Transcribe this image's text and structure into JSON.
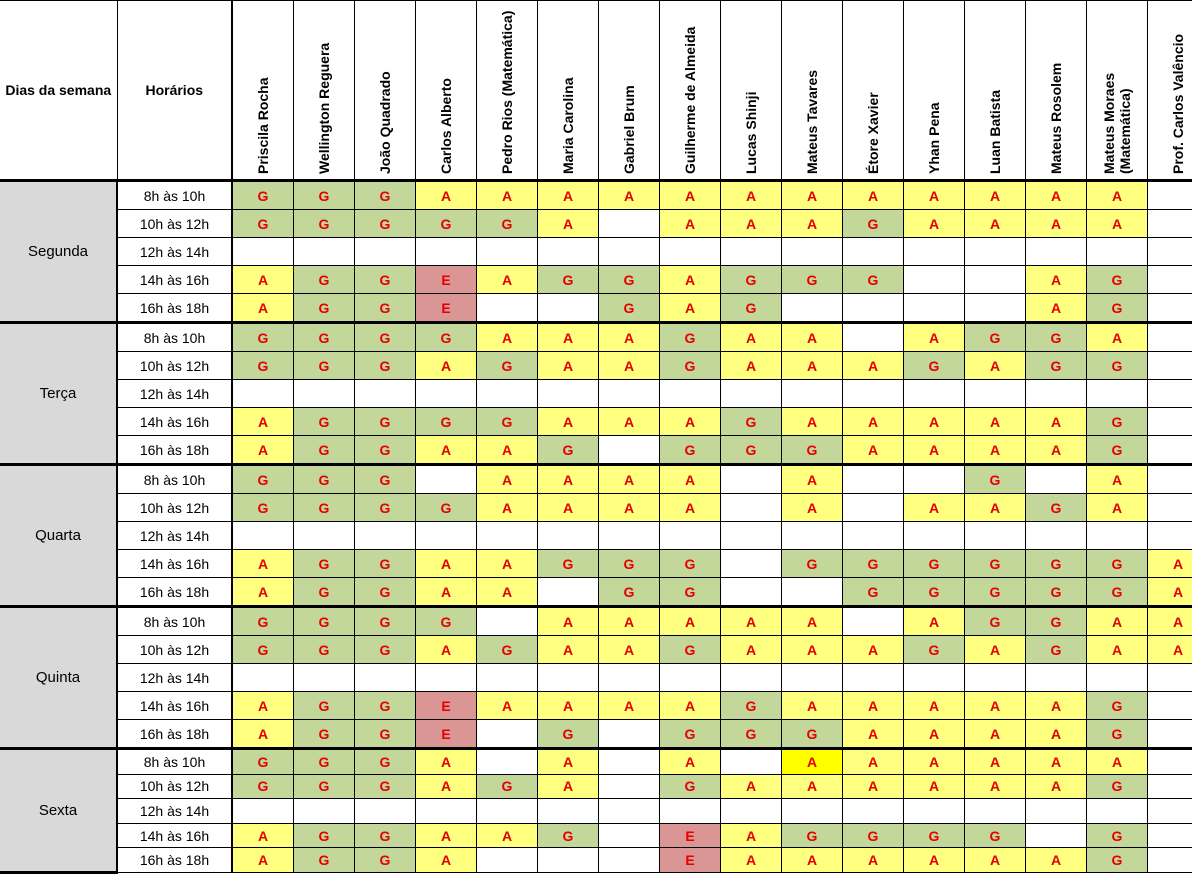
{
  "header": {
    "days_label": "Dias da semana",
    "times_label": "Horários",
    "people": [
      "Priscila Rocha",
      "Wellington Reguera",
      "João Quadrado",
      "Carlos Alberto",
      "Pedro Rios (Matemática)",
      "Maria Carolina",
      "Gabriel Brum",
      "Guilherme de Almeida",
      "Lucas Shinji",
      "Mateus Tavares",
      "Étore Xavier",
      "Yhan Pena",
      "Luan Batista",
      "Mateus Rosolem",
      "Mateus Moraes (Matemática)",
      "Prof. Carlos Valêncio"
    ]
  },
  "colors": {
    "G": "#c4d79b",
    "A": "#ffff80",
    "E": "#da9694",
    "highlight": "#ffff00",
    "text": "#e60000",
    "day_bg": "#d9d9d9"
  },
  "days": [
    {
      "name": "Segunda",
      "slots": [
        {
          "time": "8h às 10h",
          "cells": [
            "G",
            "G",
            "G",
            "A",
            "A",
            "A",
            "A",
            "A",
            "A",
            "A",
            "A",
            "A",
            "A",
            "A",
            "A",
            ""
          ]
        },
        {
          "time": "10h às 12h",
          "cells": [
            "G",
            "G",
            "G",
            "G",
            "G",
            "A",
            "",
            "A",
            "A",
            "A",
            "G",
            "A",
            "A",
            "A",
            "A",
            ""
          ]
        },
        {
          "time": "12h às 14h",
          "cells": [
            "",
            "",
            "",
            "",
            "",
            "",
            "",
            "",
            "",
            "",
            "",
            "",
            "",
            "",
            "",
            ""
          ]
        },
        {
          "time": "14h às 16h",
          "cells": [
            "A",
            "G",
            "G",
            "E",
            "A",
            "G",
            "G",
            "A",
            "G",
            "G",
            "G",
            "",
            "",
            "A",
            "G",
            ""
          ]
        },
        {
          "time": "16h às 18h",
          "cells": [
            "A",
            "G",
            "G",
            "E",
            "",
            "",
            "G",
            "A",
            "G",
            "",
            "",
            "",
            "",
            "A",
            "G",
            ""
          ]
        }
      ]
    },
    {
      "name": "Terça",
      "slots": [
        {
          "time": "8h às 10h",
          "cells": [
            "G",
            "G",
            "G",
            "G",
            "A",
            "A",
            "A",
            "G",
            "A",
            "A",
            "",
            "A",
            "G",
            "G",
            "A",
            ""
          ]
        },
        {
          "time": "10h às 12h",
          "cells": [
            "G",
            "G",
            "G",
            "A",
            "G",
            "A",
            "A",
            "G",
            "A",
            "A",
            "A",
            "G",
            "A",
            "G",
            "G",
            ""
          ]
        },
        {
          "time": "12h às 14h",
          "cells": [
            "",
            "",
            "",
            "",
            "",
            "",
            "",
            "",
            "",
            "",
            "",
            "",
            "",
            "",
            "",
            ""
          ]
        },
        {
          "time": "14h às 16h",
          "cells": [
            "A",
            "G",
            "G",
            "G",
            "G",
            "A",
            "A",
            "A",
            "G",
            "A",
            "A",
            "A",
            "A",
            "A",
            "G",
            ""
          ]
        },
        {
          "time": "16h às 18h",
          "cells": [
            "A",
            "G",
            "G",
            "A",
            "A",
            "G",
            "",
            "G",
            "G",
            "G",
            "A",
            "A",
            "A",
            "A",
            "G",
            ""
          ]
        }
      ]
    },
    {
      "name": "Quarta",
      "slots": [
        {
          "time": "8h às 10h",
          "cells": [
            "G",
            "G",
            "G",
            "",
            "A",
            "A",
            "A",
            "A",
            "",
            "A",
            "",
            "",
            "G",
            "",
            "A",
            ""
          ]
        },
        {
          "time": "10h às 12h",
          "cells": [
            "G",
            "G",
            "G",
            "G",
            "A",
            "A",
            "A",
            "A",
            "",
            "A",
            "",
            "A",
            "A",
            "G",
            "A",
            ""
          ]
        },
        {
          "time": "12h às 14h",
          "cells": [
            "",
            "",
            "",
            "",
            "",
            "",
            "",
            "",
            "",
            "",
            "",
            "",
            "",
            "",
            "",
            ""
          ]
        },
        {
          "time": "14h às 16h",
          "cells": [
            "A",
            "G",
            "G",
            "A",
            "A",
            "G",
            "G",
            "G",
            "",
            "G",
            "G",
            "G",
            "G",
            "G",
            "G",
            "A"
          ]
        },
        {
          "time": "16h às 18h",
          "cells": [
            "A",
            "G",
            "G",
            "A",
            "A",
            "",
            "G",
            "G",
            "",
            "",
            "G",
            "G",
            "G",
            "G",
            "G",
            "A"
          ]
        }
      ]
    },
    {
      "name": "Quinta",
      "slots": [
        {
          "time": "8h às 10h",
          "cells": [
            "G",
            "G",
            "G",
            "G",
            "",
            "A",
            "A",
            "A",
            "A",
            "A",
            "",
            "A",
            "G",
            "G",
            "A",
            "A"
          ]
        },
        {
          "time": "10h às 12h",
          "cells": [
            "G",
            "G",
            "G",
            "A",
            "G",
            "A",
            "A",
            "G",
            "A",
            "A",
            "A",
            "G",
            "A",
            "G",
            "A",
            "A"
          ]
        },
        {
          "time": "12h às 14h",
          "cells": [
            "",
            "",
            "",
            "",
            "",
            "",
            "",
            "",
            "",
            "",
            "",
            "",
            "",
            "",
            "",
            ""
          ]
        },
        {
          "time": "14h às 16h",
          "cells": [
            "A",
            "G",
            "G",
            "E",
            "A",
            "A",
            "A",
            "A",
            "G",
            "A",
            "A",
            "A",
            "A",
            "A",
            "G",
            ""
          ]
        },
        {
          "time": "16h às 18h",
          "cells": [
            "A",
            "G",
            "G",
            "E",
            "",
            "G",
            "",
            "G",
            "G",
            "G",
            "A",
            "A",
            "A",
            "A",
            "G",
            ""
          ]
        }
      ]
    },
    {
      "name": "Sexta",
      "slots": [
        {
          "time": "8h às 10h",
          "cells": [
            "G",
            "G",
            "G",
            "A",
            "",
            "A",
            "",
            "A",
            "",
            "A",
            "A",
            "A",
            "A",
            "A",
            "A",
            ""
          ],
          "highlight": [
            9
          ]
        },
        {
          "time": "10h às 12h",
          "cells": [
            "G",
            "G",
            "G",
            "A",
            "G",
            "A",
            "",
            "G",
            "A",
            "A",
            "A",
            "A",
            "A",
            "A",
            "G",
            ""
          ]
        },
        {
          "time": "12h às 14h",
          "cells": [
            "",
            "",
            "",
            "",
            "",
            "",
            "",
            "",
            "",
            "",
            "",
            "",
            "",
            "",
            "",
            ""
          ]
        },
        {
          "time": "14h às 16h",
          "cells": [
            "A",
            "G",
            "G",
            "A",
            "A",
            "G",
            "",
            "E",
            "A",
            "G",
            "G",
            "G",
            "G",
            "",
            "G",
            ""
          ]
        },
        {
          "time": "16h às 18h",
          "cells": [
            "A",
            "G",
            "G",
            "A",
            "",
            "",
            "",
            "E",
            "A",
            "A",
            "A",
            "A",
            "A",
            "A",
            "G",
            ""
          ]
        }
      ]
    }
  ]
}
